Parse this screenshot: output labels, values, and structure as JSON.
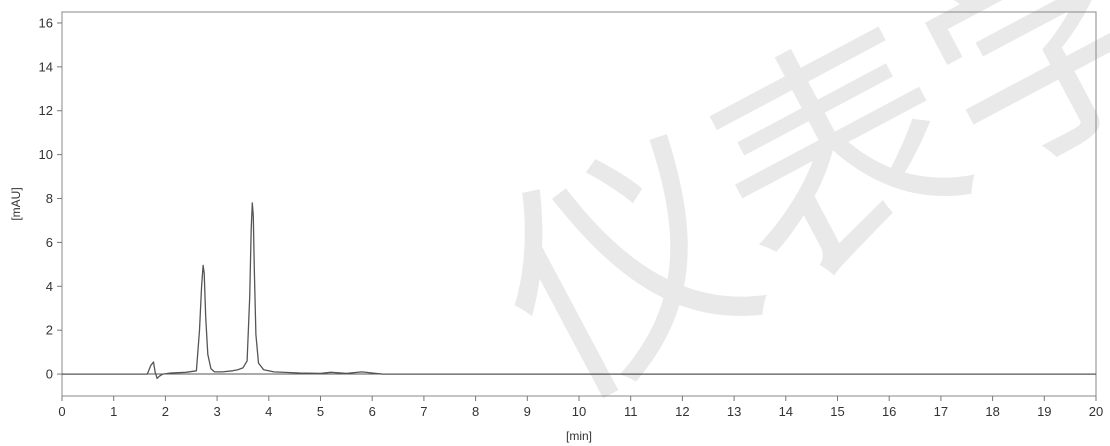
{
  "chart_data": {
    "type": "line",
    "xlabel": "[min]",
    "ylabel": "[mAU]",
    "xlim": [
      0,
      20
    ],
    "ylim": [
      -1,
      16.5
    ],
    "x_ticks": [
      0,
      1,
      2,
      3,
      4,
      5,
      6,
      7,
      8,
      9,
      10,
      11,
      12,
      13,
      14,
      15,
      16,
      17,
      18,
      19,
      20
    ],
    "y_ticks": [
      0,
      2,
      4,
      6,
      8,
      10,
      12,
      14,
      16
    ],
    "grid": false,
    "baseline_y": 0,
    "line_color": "#555555",
    "series": [
      {
        "x": [
          0.0,
          1.65,
          1.72,
          1.77,
          1.8,
          1.84,
          1.88,
          1.95,
          2.1,
          2.4,
          2.6,
          2.66,
          2.7,
          2.73,
          2.75,
          2.78,
          2.82,
          2.88,
          2.95,
          3.1,
          3.3,
          3.4,
          3.5,
          3.58,
          3.63,
          3.66,
          3.68,
          3.7,
          3.72,
          3.75,
          3.8,
          3.9,
          4.1,
          4.6,
          5.0,
          5.2,
          5.5,
          5.8,
          6.0,
          6.2,
          20.0
        ],
        "y": [
          0.0,
          0.0,
          0.4,
          0.55,
          0.1,
          -0.2,
          -0.1,
          0.0,
          0.05,
          0.08,
          0.15,
          2.0,
          4.0,
          4.95,
          4.6,
          2.6,
          0.9,
          0.25,
          0.1,
          0.1,
          0.15,
          0.2,
          0.28,
          0.6,
          3.5,
          6.6,
          7.8,
          7.2,
          4.8,
          1.8,
          0.5,
          0.2,
          0.1,
          0.05,
          0.03,
          0.08,
          0.03,
          0.1,
          0.05,
          0.0,
          0.0
        ]
      }
    ]
  },
  "watermark": {
    "text": "仪表学会"
  }
}
